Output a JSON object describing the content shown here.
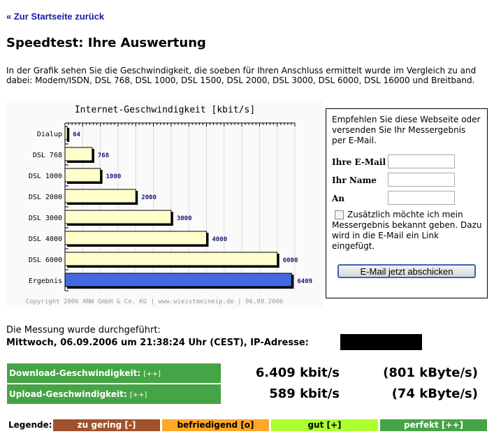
{
  "nav": {
    "back_link": "« Zur Startseite zurück"
  },
  "page": {
    "title": "Speedtest: Ihre Auswertung",
    "intro_line1": "In der Grafik sehen Sie die Geschwindigkeit, die soeben für Ihren Anschluss ermittelt wurde im Vergleich zu and",
    "intro_line2": "dabei: Modem/ISDN, DSL 768, DSL 1000, DSL 1500, DSL 2000, DSL 3000, DSL 6000, DSL 16000 und Breitband."
  },
  "chart_data": {
    "type": "bar",
    "orientation": "horizontal",
    "title": "Internet-Geschwindigkeit [kbit/s]",
    "categories": [
      "Dialup",
      "DSL 768",
      "DSL 1000",
      "DSL 2000",
      "DSL 3000",
      "DSL 4000",
      "DSL 6000",
      "Ergebnis"
    ],
    "values": [
      64,
      768,
      1000,
      2000,
      3000,
      4000,
      6000,
      6409
    ],
    "data_labels": [
      "64",
      "768",
      "1000",
      "2000",
      "3000",
      "4000",
      "6000",
      "6409"
    ],
    "xlim": [
      0,
      6500
    ],
    "grid": true,
    "colors": {
      "reference": "#ffffcc",
      "result": "#4169e1",
      "label": "#1a1a6e"
    },
    "footer": "Copyright 2006 ANW GmbH & Co. KG | www.wieistmeineip.de | 06.09.2006"
  },
  "form": {
    "intro": "Empfehlen Sie diese Webseite oder versenden Sie Ihr Messergebnis per E-Mail.",
    "email_label": "Ihre E-Mail",
    "name_label": "Ihr Name",
    "to_label": "An",
    "email_value": "",
    "name_value": "",
    "to_value": "",
    "checkbox_label": "Zusätzlich möchte ich mein Messergebnis bekannt geben. Dazu wird in die E-Mail ein Link eingefügt.",
    "checkbox_checked": false,
    "submit": "E-Mail jetzt abschicken"
  },
  "measurement": {
    "line1": "Die Messung wurde durchgeführt:",
    "line2": "Mittwoch, 06.09.2006 um 21:38:24 Uhr (CEST), IP-Adresse:"
  },
  "results": {
    "download_label": "Download-Geschwindigkeit:",
    "download_rating": "[++]",
    "download_kbit": "6.409 kbit/s",
    "download_kbyte": "(801 kByte/s)",
    "upload_label": "Upload-Geschwindigkeit:",
    "upload_rating": "[++]",
    "upload_kbit": "589 kbit/s",
    "upload_kbyte": "(74 kByte/s)"
  },
  "legend": {
    "label": "Legende:",
    "items": [
      {
        "text": "zu gering [-]",
        "color": "#a0522d",
        "text_color": "#ffffff"
      },
      {
        "text": "befriedigend [o]",
        "color": "#ffa726",
        "text_color": "#000000"
      },
      {
        "text": "gut [+]",
        "color": "#adff2f",
        "text_color": "#000000"
      },
      {
        "text": "perfekt [++]",
        "color": "#45a445",
        "text_color": "#ffffff"
      }
    ]
  }
}
